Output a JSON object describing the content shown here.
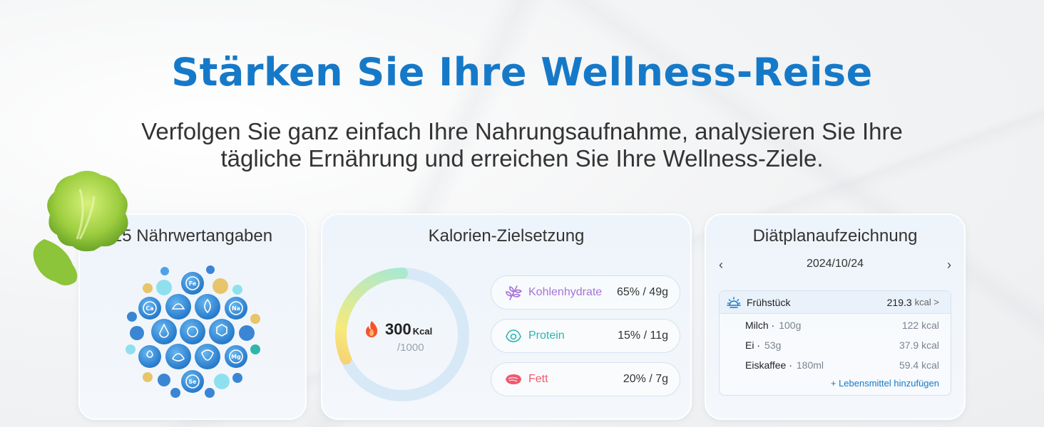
{
  "header": {
    "title": "Stärken Sie Ihre Wellness-Reise",
    "subtitle_line1": "Verfolgen Sie ganz einfach Ihre Nahrungsaufnahme, analysieren Sie Ihre",
    "subtitle_line2": "tägliche Ernährung und erreichen Sie Ihre Wellness-Ziele."
  },
  "nutrients_card": {
    "title": "25 Nährwertangaben",
    "labels": [
      "Fe",
      "Ca",
      "Na",
      "Mg",
      "Se"
    ]
  },
  "calorie_card": {
    "title": "Kalorien-Zielsetzung",
    "current": "300",
    "unit": "Kcal",
    "goal": "/1000",
    "progress_fraction": 0.3,
    "macros": [
      {
        "name": "Kohlenhydrate",
        "value": "65% / 49g",
        "icon": "wheat-icon",
        "color": "#a774d8"
      },
      {
        "name": "Protein",
        "value": "15% / 11g",
        "icon": "egg-icon",
        "color": "#2fb5ae"
      },
      {
        "name": "Fett",
        "value": "20% / 7g",
        "icon": "meat-icon",
        "color": "#ef5a6e"
      }
    ]
  },
  "diet_card": {
    "title": "Diätplanaufzeichnung",
    "prev": "‹",
    "next": "›",
    "date": "2024/10/24",
    "meal": {
      "name": "Frühstück",
      "kcal": "219.3",
      "unit": "kcal >",
      "icon": "sunrise-icon"
    },
    "items": [
      {
        "name": "Milch ·",
        "qty": "100g",
        "kcal": "122 kcal"
      },
      {
        "name": "Ei ·",
        "qty": "53g",
        "kcal": "37.9 kcal"
      },
      {
        "name": "Eiskaffee ·",
        "qty": "180ml",
        "kcal": "59.4 kcal"
      }
    ],
    "add_label": "+ Lebensmittel hinzufügen"
  },
  "colors": {
    "brand_blue": "#1679c8",
    "ring_gradient_start": "#f7b36c",
    "ring_gradient_mid": "#f6ea7a",
    "ring_gradient_end": "#8fe8f0",
    "ring_track": "#d7e8f6"
  }
}
